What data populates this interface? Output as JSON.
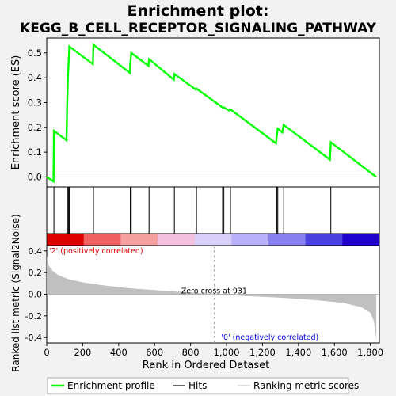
{
  "chart_data": {
    "type": "line",
    "title": "Enrichment plot:",
    "subtitle": "KEGG_B_CELL_RECEPTOR_SIGNALING_PATHWAY",
    "xlabel": "Rank in Ordered Dataset",
    "x_ticks": [
      0,
      200,
      400,
      600,
      800,
      1000,
      1200,
      1400,
      1600,
      1800
    ],
    "x_tick_labels": [
      "0",
      "200",
      "400",
      "600",
      "800",
      "1,000",
      "1,200",
      "1,400",
      "1,600",
      "1,800"
    ],
    "xlim": [
      0,
      1850
    ],
    "es_panel": {
      "ylabel": "Enrichment score (ES)",
      "ylim": [
        -0.04,
        0.56
      ],
      "y_ticks": [
        0.0,
        0.1,
        0.2,
        0.3,
        0.4,
        0.5
      ],
      "y_tick_labels": [
        "0.0",
        "0.1",
        "0.2",
        "0.3",
        "0.4",
        "0.5"
      ],
      "series": [
        {
          "name": "Enrichment profile",
          "color": "#00ff00",
          "points": [
            [
              0,
              0.0
            ],
            [
              38,
              -0.018
            ],
            [
              40,
              0.186
            ],
            [
              110,
              0.148
            ],
            [
              113,
              0.277
            ],
            [
              118,
              0.405
            ],
            [
              126,
              0.526
            ],
            [
              257,
              0.455
            ],
            [
              260,
              0.533
            ],
            [
              462,
              0.42
            ],
            [
              465,
              0.46
            ],
            [
              470,
              0.5
            ],
            [
              566,
              0.448
            ],
            [
              569,
              0.475
            ],
            [
              707,
              0.392
            ],
            [
              710,
              0.415
            ],
            [
              830,
              0.352
            ],
            [
              833,
              0.356
            ],
            [
              978,
              0.28
            ],
            [
              985,
              0.28
            ],
            [
              1015,
              0.268
            ],
            [
              1022,
              0.272
            ],
            [
              1275,
              0.136
            ],
            [
              1280,
              0.17
            ],
            [
              1285,
              0.195
            ],
            [
              1310,
              0.18
            ],
            [
              1318,
              0.21
            ],
            [
              1575,
              0.07
            ],
            [
              1580,
              0.14
            ],
            [
              1833,
              0.0
            ]
          ]
        }
      ]
    },
    "hits": {
      "name": "Hits",
      "color": "#000000",
      "positions": [
        40,
        113,
        118,
        122,
        126,
        260,
        465,
        470,
        569,
        710,
        833,
        978,
        985,
        1022,
        1280,
        1285,
        1318,
        1580
      ]
    },
    "rank_panel": {
      "ylabel": "Ranked list metric (Signal2Noise)",
      "ylim": [
        -0.45,
        0.45
      ],
      "y_ticks": [
        -0.4,
        -0.2,
        0.0,
        0.2,
        0.4
      ],
      "y_tick_labels": [
        "-0.4",
        "-0.2",
        "0.0",
        "0.2",
        "0.4"
      ],
      "series": [
        {
          "name": "Ranking metric scores",
          "color": "#c0c0c0",
          "points": [
            [
              0,
              0.35
            ],
            [
              10,
              0.27
            ],
            [
              30,
              0.22
            ],
            [
              60,
              0.18
            ],
            [
              120,
              0.14
            ],
            [
              200,
              0.11
            ],
            [
              300,
              0.085
            ],
            [
              400,
              0.065
            ],
            [
              500,
              0.05
            ],
            [
              600,
              0.038
            ],
            [
              700,
              0.026
            ],
            [
              800,
              0.016
            ],
            [
              931,
              0.0
            ],
            [
              1100,
              -0.015
            ],
            [
              1300,
              -0.032
            ],
            [
              1500,
              -0.055
            ],
            [
              1650,
              -0.08
            ],
            [
              1750,
              -0.12
            ],
            [
              1800,
              -0.17
            ],
            [
              1820,
              -0.25
            ],
            [
              1833,
              -0.42
            ]
          ]
        }
      ],
      "zero_cross_rank": 931,
      "annotations": {
        "zero_cross": "Zero cross at 931",
        "positive": "'2' (positively correlated)",
        "negative": "'0' (negatively correlated)",
        "positive_color": "#dd0000",
        "negative_color": "#0000dd"
      }
    },
    "legend": {
      "placement": "bottom",
      "entries": [
        {
          "label": "Enrichment profile",
          "color": "#00ff00"
        },
        {
          "label": "Hits",
          "color": "#000000"
        },
        {
          "label": "Ranking metric scores",
          "color": "#c0c0c0"
        }
      ]
    },
    "heatmap_colors": [
      "#dd0000",
      "#f06060",
      "#f4a0a0",
      "#f4c0e0",
      "#d8d0f8",
      "#b8b0f8",
      "#8880f0",
      "#4a40e0",
      "#2000cc"
    ]
  }
}
